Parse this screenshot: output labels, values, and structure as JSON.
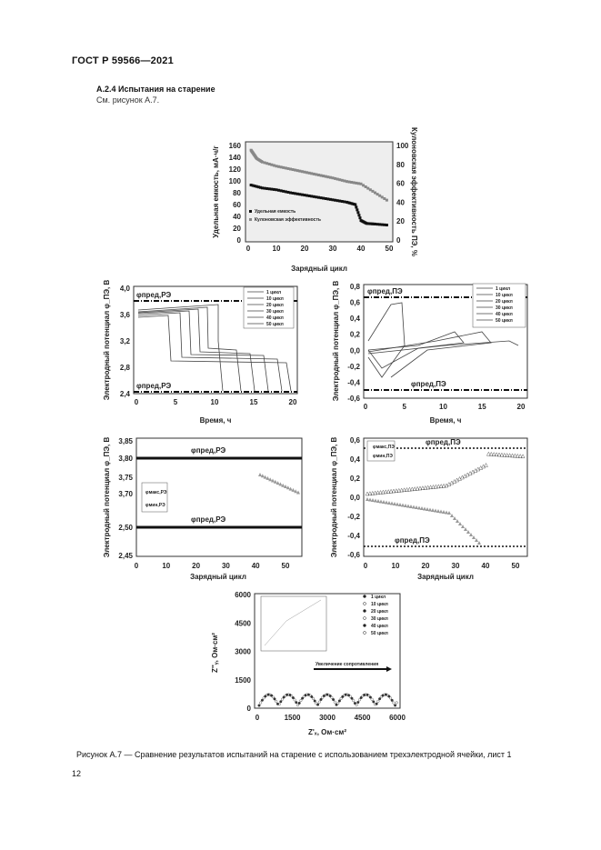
{
  "header": {
    "standard": "ГОСТ Р 59566—2021"
  },
  "section": {
    "title": "А.2.4 Испытания на старение",
    "see_figure": "См. рисунок А.7."
  },
  "caption": "Рисунок А.7 — Сравнение результатов испытаний на старение с использованием трехэлектродной ячейки, лист 1",
  "page_number": "12",
  "chart_data": [
    {
      "type": "scatter",
      "xlabel": "Зарядный цикл",
      "ylabel": "Удельная емкость, мА·ч/г",
      "y2label": "Кулоновская эффективность ПЭ, %",
      "xlim": [
        0,
        50
      ],
      "ylim": [
        0,
        160
      ],
      "y2lim": [
        0,
        100
      ],
      "x_ticks": [
        "0",
        "10",
        "20",
        "30",
        "40",
        "50"
      ],
      "y_ticks": [
        "0",
        "20",
        "40",
        "60",
        "80",
        "100",
        "120",
        "140",
        "160"
      ],
      "y2_ticks": [
        "0",
        "20",
        "40",
        "60",
        "80",
        "100"
      ],
      "legend": [
        "Удельная емкость",
        "Кулоновская эффективность"
      ],
      "series": [
        {
          "name": "Удельная емкость",
          "x": [
            1,
            5,
            10,
            15,
            20,
            25,
            30,
            35,
            38,
            40,
            42,
            45,
            50
          ],
          "y": [
            93,
            88,
            85,
            80,
            76,
            72,
            68,
            64,
            60,
            33,
            28,
            27,
            25
          ]
        },
        {
          "name": "Кулоновская эффективность",
          "x": [
            1,
            2,
            3,
            5,
            10,
            15,
            20,
            25,
            30,
            35,
            40,
            45,
            50
          ],
          "y": [
            152,
            145,
            138,
            132,
            125,
            120,
            115,
            110,
            105,
            99,
            95,
            80,
            65
          ]
        }
      ]
    },
    {
      "type": "line",
      "xlabel": "Время, ч",
      "ylabel": "Электродный потенциал φ_ПЭ, В",
      "xlim": [
        0,
        20
      ],
      "ylim": [
        2.4,
        4.0
      ],
      "x_ticks": [
        "0",
        "5",
        "10",
        "15",
        "20"
      ],
      "y_ticks": [
        "2,4",
        "2,8",
        "3,2",
        "3,6",
        "4,0"
      ],
      "upper_limit_label": "φпред,РЭ",
      "lower_limit_label": "φпред,РЭ",
      "legend": [
        "1 цикл",
        "10 цикл",
        "20 цикл",
        "30 цикл",
        "40 цикл",
        "50 цикл"
      ]
    },
    {
      "type": "line",
      "xlabel": "Время, ч",
      "ylabel": "Электродный потенциал φ_ПЭ, В",
      "xlim": [
        0,
        20
      ],
      "ylim": [
        -0.6,
        0.8
      ],
      "x_ticks": [
        "0",
        "5",
        "10",
        "15",
        "20"
      ],
      "y_ticks": [
        "-0,6",
        "-0,4",
        "-0,2",
        "0,0",
        "0,2",
        "0,4",
        "0,6",
        "0,8"
      ],
      "upper_limit_label": "φпред,ПЭ",
      "lower_limit_label": "φпред,ПЭ",
      "legend": [
        "1 цикл",
        "10 цикл",
        "20 цикл",
        "30 цикл",
        "40 цикл",
        "50 цикл"
      ]
    },
    {
      "type": "scatter",
      "xlabel": "Зарядный цикл",
      "ylabel": "Электродный потенциал φ_ПЭ, В",
      "xlim": [
        0,
        55
      ],
      "x_ticks": [
        "0",
        "10",
        "20",
        "30",
        "40",
        "50"
      ],
      "y_ticks": [
        "2,45",
        "2,50",
        "3,70",
        "3,75",
        "3,80",
        "3,85"
      ],
      "upper_limit_label": "φпред,РЭ",
      "lower_limit_label": "φпред,РЭ",
      "legend": [
        "φмакс,РЭ",
        "φмин,РЭ"
      ]
    },
    {
      "type": "scatter",
      "xlabel": "Зарядный цикл",
      "ylabel": "Электродный потенциал φ_ПЭ, В",
      "xlim": [
        0,
        55
      ],
      "ylim": [
        -0.6,
        0.6
      ],
      "x_ticks": [
        "0",
        "10",
        "20",
        "30",
        "40",
        "50"
      ],
      "y_ticks": [
        "-0,6",
        "-0,4",
        "-0,2",
        "0,0",
        "0,2",
        "0,4",
        "0,6"
      ],
      "upper_limit_label": "φпред,ПЭ",
      "lower_limit_label": "φпред,ПЭ",
      "legend": [
        "φмакс,ПЭ",
        "φмин,ПЭ"
      ]
    },
    {
      "type": "scatter",
      "xlabel": "Z'ₓ, Ом·см²",
      "ylabel": "Z''ᵧ, Ом·см²",
      "xlim": [
        0,
        6000
      ],
      "ylim": [
        0,
        6000
      ],
      "x_ticks": [
        "0",
        "1500",
        "3000",
        "4500",
        "6000"
      ],
      "y_ticks": [
        "0",
        "1500",
        "3000",
        "4500",
        "6000"
      ],
      "legend": [
        "1 цикл",
        "10 цикл",
        "20 цикл",
        "30 цикл",
        "40 цикл",
        "50 цикл"
      ],
      "annotation": "Увеличение сопротивления"
    }
  ]
}
